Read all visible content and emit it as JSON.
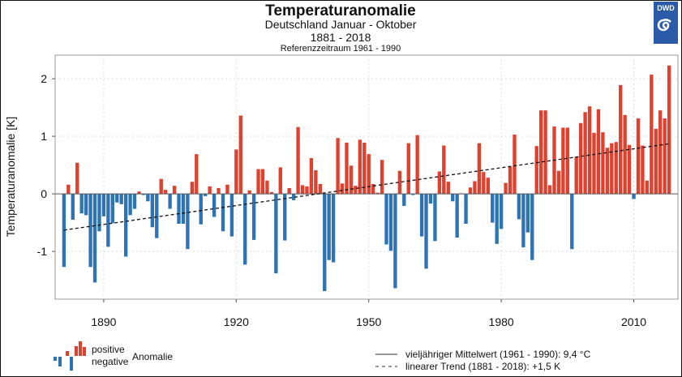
{
  "chart_data": {
    "type": "bar",
    "title": "Temperaturanomalie",
    "subtitle_lines": [
      "Deutschland Januar - Oktober",
      "1881 - 2018",
      "Referenzzeitraum 1961 - 1990"
    ],
    "ylabel": "Temperaturanomalie [K]",
    "xlabel": "",
    "xlim": [
      1879,
      2020
    ],
    "ylim": [
      -1.83,
      2.41
    ],
    "grid": true,
    "x_ticks": [
      1890,
      1920,
      1950,
      1980,
      2010
    ],
    "x_tick_labels": [
      "1890",
      "1920",
      "1950",
      "1980",
      "2010"
    ],
    "y_ticks": [
      2,
      1,
      0,
      -1
    ],
    "y_tick_labels": [
      "2",
      "1",
      "0",
      "-1"
    ],
    "start_year": 1881,
    "end_year": 2018,
    "values": [
      -1.27,
      0.16,
      -0.45,
      0.54,
      -0.34,
      -0.37,
      -1.27,
      -1.54,
      -0.65,
      -0.39,
      -0.92,
      -0.51,
      -0.15,
      -0.18,
      -1.09,
      -0.37,
      -0.26,
      0.04,
      -0.02,
      -0.13,
      -0.58,
      -0.77,
      0.26,
      0.07,
      -0.26,
      0.14,
      -0.52,
      -0.52,
      -0.96,
      0.21,
      0.69,
      -0.53,
      -0.04,
      0.13,
      -0.4,
      0.1,
      -0.65,
      0.16,
      -0.74,
      0.77,
      1.36,
      -1.23,
      0.06,
      -0.8,
      0.43,
      0.43,
      0.23,
      0.03,
      -1.38,
      0.46,
      -0.81,
      0.1,
      -0.11,
      1.16,
      0.15,
      0.13,
      0.62,
      0.41,
      0.17,
      -1.69,
      -1.15,
      -1.19,
      0.97,
      0.18,
      0.89,
      0.49,
      0.14,
      0.94,
      0.89,
      0.69,
      0.17,
      0.02,
      0.59,
      -0.88,
      -0.99,
      -1.64,
      0.4,
      -0.21,
      0.88,
      -0.02,
      1.02,
      -0.74,
      -1.3,
      -0.17,
      -0.82,
      0.39,
      0.84,
      0.21,
      -0.13,
      -0.76,
      0.01,
      -0.52,
      0.11,
      0.22,
      0.88,
      0.38,
      0.28,
      -0.5,
      -0.87,
      -0.61,
      0.19,
      0.47,
      1.03,
      -0.44,
      -0.93,
      -0.67,
      -1.15,
      0.83,
      1.45,
      1.45,
      0.15,
      1.17,
      0.4,
      1.15,
      1.15,
      -0.96,
      0.64,
      1.23,
      1.42,
      1.52,
      1.06,
      1.47,
      1.07,
      0.8,
      0.88,
      0.9,
      1.89,
      1.37,
      0.85,
      -0.09,
      1.31,
      0.84,
      0.23,
      2.07,
      1.13,
      1.45,
      1.31,
      2.23
    ],
    "trend": {
      "label": "linearer Trend (1881 - 2018): +1,5 K",
      "start": -0.63,
      "end": 0.87
    },
    "mean_line": {
      "label": "vieljähriger Mittelwert (1961 - 1990): 9,4 °C",
      "value": 0
    },
    "legend": {
      "positive": "positive",
      "negative": "negative",
      "anomalie": "Anomalie",
      "placement": "bottom"
    },
    "colors": {
      "positive": "#e0412f",
      "negative": "#2e74b5",
      "logo": "#2b5aa8"
    }
  },
  "logo": {
    "text": "DWD"
  }
}
